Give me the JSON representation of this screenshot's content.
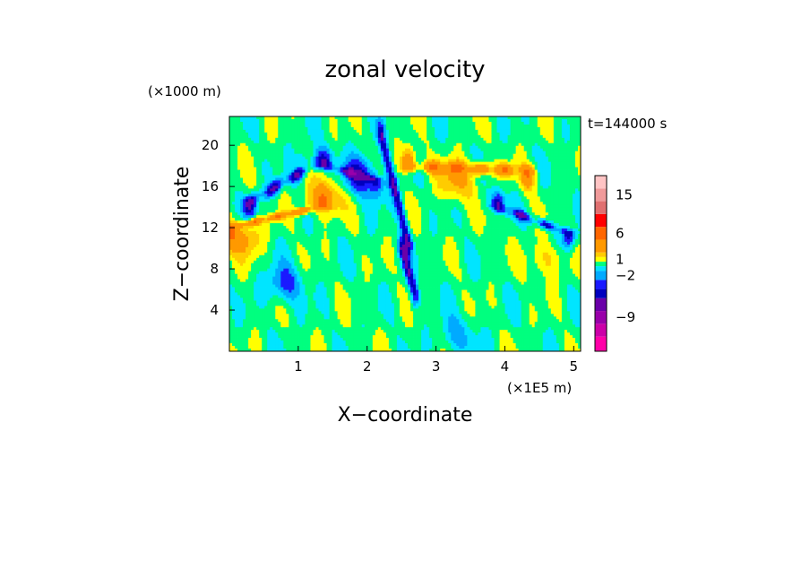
{
  "chart_data": {
    "type": "heatmap",
    "title": "zonal velocity",
    "xlabel": "X−coordinate",
    "ylabel": "Z−coordinate",
    "x_unit": "(×1E5 m)",
    "y_unit": "(×1000 m)",
    "time_label": "t=144000 s",
    "xlim": [
      0,
      5.1
    ],
    "ylim": [
      0,
      22.8
    ],
    "xticks": [
      "1",
      "2",
      "3",
      "4",
      "5"
    ],
    "yticks": [
      "4",
      "8",
      "12",
      "16",
      "20"
    ],
    "colorbar": {
      "levels": [
        {
          "color": "#ff00a8",
          "value": -15
        },
        {
          "color": "#cc00a8",
          "value": -12
        },
        {
          "color": "#9900aa",
          "value": -9
        },
        {
          "color": "#6a00a8",
          "value": -6
        },
        {
          "color": "#0000bf",
          "value": -4
        },
        {
          "color": "#1a1aff",
          "value": -3
        },
        {
          "color": "#00aaff",
          "value": -2
        },
        {
          "color": "#00e5ff",
          "value": -1
        },
        {
          "color": "#00ff7f",
          "value": 0
        },
        {
          "color": "#ffff00",
          "value": 1
        },
        {
          "color": "#ffcc00",
          "value": 2
        },
        {
          "color": "#ff9900",
          "value": 3
        },
        {
          "color": "#ff6600",
          "value": 6
        },
        {
          "color": "#ff0000",
          "value": 9
        },
        {
          "color": "#e07070",
          "value": 12
        },
        {
          "color": "#f09a9a",
          "value": 15
        },
        {
          "color": "#ffc4c4",
          "value": 18
        }
      ],
      "tick_labels": [
        {
          "value": 15,
          "label": "15"
        },
        {
          "value": 6,
          "label": "6"
        },
        {
          "value": 1,
          "label": "1"
        },
        {
          "value": -2,
          "label": "−2"
        },
        {
          "value": -9,
          "label": "−9"
        }
      ]
    },
    "features": [
      {
        "kind": "jet",
        "sign": "negative",
        "x0": 0.3,
        "z0": 14.5,
        "x1": 1.2,
        "z1": 18.0,
        "peak": -5
      },
      {
        "kind": "jet",
        "sign": "negative",
        "x0": 1.4,
        "z0": 18.0,
        "x1": 2.2,
        "z1": 16.5,
        "peak": -4
      },
      {
        "kind": "jet",
        "sign": "negative",
        "x0": 3.9,
        "z0": 14.0,
        "x1": 4.9,
        "z1": 11.5,
        "peak": -5
      },
      {
        "kind": "jet",
        "sign": "positive",
        "x0": 0.0,
        "z0": 12.0,
        "x1": 1.3,
        "z1": 14.0,
        "peak": 6
      },
      {
        "kind": "jet",
        "sign": "positive",
        "x0": 2.6,
        "z0": 18.0,
        "x1": 4.3,
        "z1": 17.5,
        "peak": 6
      },
      {
        "kind": "blob",
        "sign": "negative",
        "x": 1.9,
        "z": 17.0,
        "peak": -4
      },
      {
        "kind": "blob",
        "sign": "positive",
        "x": 1.4,
        "z": 15.0,
        "peak": 3
      },
      {
        "kind": "blob",
        "sign": "positive",
        "x": 3.3,
        "z": 16.5,
        "peak": 3
      },
      {
        "kind": "blob",
        "sign": "positive",
        "x": 0.2,
        "z": 11.0,
        "peak": 3
      },
      {
        "kind": "blob",
        "sign": "negative",
        "x": 0.8,
        "z": 6.5,
        "peak": -3
      },
      {
        "kind": "blob",
        "sign": "negative",
        "x": 3.3,
        "z": 1.5,
        "peak": -2
      },
      {
        "kind": "blob",
        "sign": "positive",
        "x": 4.6,
        "z": 9.0,
        "peak": 2
      },
      {
        "kind": "streak",
        "sign": "negative",
        "x0": 2.2,
        "z0": 21.0,
        "x1": 2.6,
        "z1": 10.5,
        "peak": -4
      },
      {
        "kind": "streak",
        "sign": "negative",
        "x0": 2.5,
        "z0": 10.0,
        "x1": 2.7,
        "z1": 5.5,
        "peak": -4
      }
    ]
  }
}
